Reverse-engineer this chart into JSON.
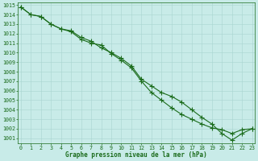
{
  "x": [
    0,
    1,
    2,
    3,
    4,
    5,
    6,
    7,
    8,
    9,
    10,
    11,
    12,
    13,
    14,
    15,
    16,
    17,
    18,
    19,
    20,
    21,
    22,
    23
  ],
  "line1": [
    1014.8,
    1014.0,
    1013.8,
    1013.0,
    1012.5,
    1012.2,
    1011.4,
    1011.0,
    1010.8,
    1009.9,
    1009.2,
    1008.4,
    1007.0,
    1005.8,
    1005.0,
    1004.2,
    1003.5,
    1003.0,
    1002.5,
    1002.1,
    1001.9,
    1001.5,
    1001.9,
    1002.0
  ],
  "line2": [
    1014.8,
    1014.0,
    1013.8,
    1013.0,
    1012.5,
    1012.3,
    1011.6,
    1011.2,
    1010.5,
    1010.0,
    1009.4,
    1008.6,
    1007.2,
    1006.5,
    1005.8,
    1005.4,
    1004.8,
    1004.0,
    1003.2,
    1002.5,
    1001.5,
    1000.8,
    1001.5,
    1002.0
  ],
  "line_color": "#1a6b1a",
  "background_color": "#c8ebe8",
  "grid_color": "#a8d5d0",
  "text_color": "#1a6b1a",
  "title": "Graphe pression niveau de la mer (hPa)",
  "ylim_min": 1001,
  "ylim_max": 1015,
  "xlim_min": 0,
  "xlim_max": 23,
  "ylabel_ticks": [
    1001,
    1002,
    1003,
    1004,
    1005,
    1006,
    1007,
    1008,
    1009,
    1010,
    1011,
    1012,
    1013,
    1014,
    1015
  ],
  "xlabel_ticks": [
    0,
    1,
    2,
    3,
    4,
    5,
    6,
    7,
    8,
    9,
    10,
    11,
    12,
    13,
    14,
    15,
    16,
    17,
    18,
    19,
    20,
    21,
    22,
    23
  ],
  "tick_fontsize": 4.8,
  "label_fontsize": 5.5,
  "marker_size": 2.5,
  "linewidth": 0.8
}
